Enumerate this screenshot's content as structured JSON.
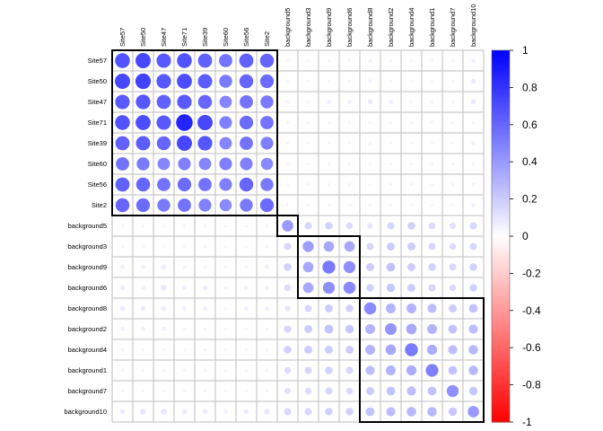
{
  "chart_data": {
    "type": "heatmap",
    "title": "",
    "variables": [
      "Site57",
      "Site50",
      "Site47",
      "Site71",
      "Site39",
      "Site60",
      "Site56",
      "Site2",
      "background5",
      "background3",
      "background9",
      "background6",
      "background8",
      "background2",
      "background4",
      "background1",
      "background7",
      "background10"
    ],
    "value_range": [
      -1,
      1
    ],
    "colorbar_ticks": [
      "1",
      "0.8",
      "0.6",
      "0.4",
      "0.2",
      "0",
      "-0.2",
      "-0.4",
      "-0.6",
      "-0.8",
      "-1"
    ],
    "colors": {
      "positive": "#0000ff",
      "zero": "#ffffff",
      "negative": "#ff0000",
      "grid": "#bebebe",
      "cluster_border": "#000000"
    },
    "clusters": [
      {
        "start": 0,
        "end": 7
      },
      {
        "start": 8,
        "end": 8
      },
      {
        "start": 9,
        "end": 11
      },
      {
        "start": 12,
        "end": 17
      }
    ],
    "matrix": [
      [
        0.68,
        0.72,
        0.65,
        0.68,
        0.62,
        0.55,
        0.62,
        0.6,
        0,
        0,
        0,
        0,
        0.05,
        0,
        0,
        0,
        0,
        0.06
      ],
      [
        0.72,
        0.74,
        0.66,
        0.7,
        0.64,
        0.52,
        0.6,
        0.58,
        0,
        0.02,
        0.02,
        0.04,
        0.05,
        0.02,
        0.02,
        0.02,
        0.02,
        0.08
      ],
      [
        0.65,
        0.66,
        0.62,
        0.65,
        0.6,
        0.48,
        0.55,
        0.52,
        0,
        0.04,
        0.06,
        0.06,
        0.08,
        0.06,
        0.04,
        0.04,
        0.04,
        0.08
      ],
      [
        0.68,
        0.7,
        0.65,
        0.86,
        0.72,
        0.5,
        0.58,
        0.55,
        0,
        0,
        0,
        0,
        0.02,
        0,
        0,
        0,
        0,
        0.04
      ],
      [
        0.62,
        0.64,
        0.6,
        0.72,
        0.66,
        0.48,
        0.55,
        0.5,
        0,
        0.02,
        0.02,
        0.02,
        0.04,
        0.02,
        0.02,
        0.02,
        0.02,
        0.06
      ],
      [
        0.55,
        0.52,
        0.48,
        0.5,
        0.48,
        0.5,
        0.5,
        0.46,
        0,
        0,
        0,
        0,
        0.04,
        0,
        0,
        0,
        0,
        0.04
      ],
      [
        0.62,
        0.6,
        0.55,
        0.58,
        0.55,
        0.5,
        0.6,
        0.52,
        0,
        0,
        0,
        0,
        0.02,
        0,
        0,
        0,
        0,
        0.04
      ],
      [
        0.6,
        0.58,
        0.52,
        0.55,
        0.5,
        0.46,
        0.52,
        0.58,
        0,
        0.02,
        0.02,
        0.02,
        0.04,
        0.02,
        0.02,
        0.02,
        0.02,
        0.06
      ],
      [
        0,
        0,
        0,
        0,
        0,
        0,
        0,
        0,
        0.4,
        0.16,
        0.18,
        0.14,
        0.1,
        0.16,
        0.18,
        0.14,
        0.12,
        0.16
      ],
      [
        0.04,
        0.04,
        0.04,
        0.04,
        0.04,
        0,
        0.04,
        0.04,
        0.16,
        0.38,
        0.34,
        0.34,
        0.16,
        0.2,
        0.2,
        0.16,
        0.14,
        0.16
      ],
      [
        0.06,
        0.06,
        0.08,
        0.04,
        0.04,
        0,
        0.04,
        0.06,
        0.18,
        0.34,
        0.52,
        0.44,
        0.2,
        0.24,
        0.2,
        0.18,
        0.16,
        0.18
      ],
      [
        0.08,
        0.06,
        0.1,
        0.06,
        0.08,
        0,
        0.06,
        0.06,
        0.14,
        0.34,
        0.44,
        0.46,
        0.18,
        0.22,
        0.2,
        0.16,
        0.14,
        0.18
      ],
      [
        0.08,
        0.08,
        0.08,
        0.06,
        0.06,
        0.04,
        0.06,
        0.06,
        0.1,
        0.16,
        0.2,
        0.18,
        0.46,
        0.3,
        0.3,
        0.26,
        0.2,
        0.24
      ],
      [
        0.06,
        0.06,
        0.06,
        0.04,
        0.04,
        0,
        0.04,
        0.04,
        0.16,
        0.2,
        0.24,
        0.22,
        0.3,
        0.42,
        0.34,
        0.3,
        0.24,
        0.26
      ],
      [
        0.04,
        0.04,
        0.04,
        0,
        0,
        0,
        0.04,
        0.04,
        0.18,
        0.2,
        0.2,
        0.2,
        0.3,
        0.34,
        0.52,
        0.32,
        0.26,
        0.28
      ],
      [
        0.04,
        0.04,
        0.04,
        0,
        0.04,
        0,
        0.04,
        0.04,
        0.14,
        0.16,
        0.18,
        0.16,
        0.26,
        0.3,
        0.32,
        0.5,
        0.24,
        0.28
      ],
      [
        0,
        0,
        0,
        0,
        0,
        0,
        0,
        0,
        0.12,
        0.14,
        0.16,
        0.14,
        0.2,
        0.24,
        0.26,
        0.24,
        0.44,
        0.22
      ],
      [
        0.08,
        0.1,
        0.1,
        0.08,
        0.08,
        0.06,
        0.08,
        0.1,
        0.16,
        0.16,
        0.18,
        0.18,
        0.24,
        0.26,
        0.28,
        0.28,
        0.22,
        0.4
      ]
    ]
  }
}
